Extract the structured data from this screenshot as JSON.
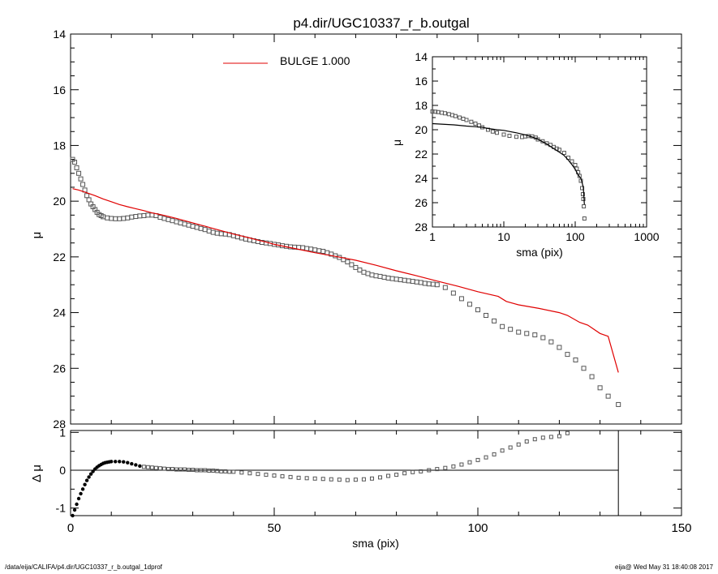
{
  "title": "p4.dir/UGC10337_r_b.outgal",
  "footer": {
    "left": "/data/eija/CALIFA/p4.dir/UGC10337_r_b.outgal_1dprof",
    "right": "eija@  Wed May 31 18:40:08 2017"
  },
  "colors": {
    "data": "#555555",
    "model": "#e00000",
    "axis": "#000000"
  },
  "chart_data": [
    {
      "id": "main",
      "type": "scatter",
      "title": "p4.dir/UGC10337_r_b.outgal",
      "ylabel": "μ",
      "xlim": [
        0,
        150
      ],
      "ylim": [
        28,
        14
      ],
      "y_inverted": true,
      "xticks": [
        0,
        50,
        100,
        150
      ],
      "yticks": [
        14,
        16,
        18,
        20,
        22,
        24,
        26,
        28
      ],
      "legend": {
        "label": "BULGE  1.000",
        "color": "#e00000",
        "position": "top-center"
      },
      "series": [
        {
          "kind": "points",
          "x": [
            0.5,
            1,
            1.5,
            2,
            2.5,
            3,
            3.5,
            4,
            4.5,
            5,
            5.5,
            6,
            6.5,
            7,
            7.5,
            8,
            9,
            10,
            11,
            12,
            13,
            14,
            15,
            16,
            17,
            18,
            19,
            20,
            21,
            22,
            23,
            24,
            25,
            26,
            27,
            28,
            29,
            30,
            31,
            32,
            33,
            34,
            35,
            36,
            37,
            38,
            39,
            40,
            41,
            42,
            43,
            44,
            45,
            46,
            47,
            48,
            49,
            50,
            51,
            52,
            53,
            54,
            55,
            56,
            57,
            58,
            59,
            60,
            61,
            62,
            63,
            64,
            65,
            66,
            67,
            68,
            69,
            70,
            71,
            72,
            73,
            74,
            75,
            76,
            77,
            78,
            79,
            80,
            81,
            82,
            83,
            84,
            85,
            86,
            87,
            88,
            89,
            90,
            92,
            94,
            96,
            98,
            100,
            102,
            104,
            106,
            108,
            110,
            112,
            114,
            116,
            118,
            120,
            122,
            124,
            126,
            128,
            130,
            132,
            134.5
          ],
          "y": [
            18.5,
            18.6,
            18.8,
            19.0,
            19.2,
            19.4,
            19.6,
            19.8,
            19.95,
            20.1,
            20.2,
            20.3,
            20.4,
            20.48,
            20.52,
            20.56,
            20.6,
            20.62,
            20.63,
            20.63,
            20.62,
            20.6,
            20.57,
            20.55,
            20.53,
            20.52,
            20.5,
            20.5,
            20.52,
            20.58,
            20.62,
            20.66,
            20.7,
            20.74,
            20.78,
            20.82,
            20.86,
            20.9,
            20.94,
            20.98,
            21.02,
            21.07,
            21.12,
            21.15,
            21.17,
            21.18,
            21.2,
            21.24,
            21.28,
            21.32,
            21.36,
            21.39,
            21.42,
            21.45,
            21.48,
            21.5,
            21.52,
            21.55,
            21.57,
            21.6,
            21.62,
            21.64,
            21.65,
            21.66,
            21.67,
            21.7,
            21.72,
            21.75,
            21.78,
            21.8,
            21.85,
            21.9,
            21.96,
            22.02,
            22.1,
            22.18,
            22.28,
            22.38,
            22.47,
            22.55,
            22.6,
            22.65,
            22.68,
            22.7,
            22.73,
            22.76,
            22.78,
            22.8,
            22.82,
            22.84,
            22.86,
            22.88,
            22.9,
            22.92,
            22.95,
            22.97,
            22.98,
            23.0,
            23.1,
            23.3,
            23.5,
            23.7,
            23.9,
            24.1,
            24.3,
            24.5,
            24.6,
            24.7,
            24.75,
            24.8,
            24.9,
            25.05,
            25.25,
            25.5,
            25.7,
            26.0,
            26.3,
            26.7,
            27.0,
            27.3
          ]
        },
        {
          "kind": "line",
          "name": "BULGE  1.000",
          "x": [
            0.5,
            2,
            4,
            6,
            8,
            10,
            12,
            14,
            16,
            18,
            20,
            22,
            24,
            26,
            28,
            30,
            32,
            34,
            36,
            38,
            40,
            42,
            44,
            46,
            48,
            50,
            55,
            60,
            65,
            70,
            75,
            80,
            85,
            90,
            95,
            100,
            105,
            107,
            110,
            115,
            120,
            122,
            125,
            127,
            130,
            132,
            134.5
          ],
          "y": [
            19.55,
            19.6,
            19.7,
            19.8,
            19.92,
            20.02,
            20.12,
            20.2,
            20.27,
            20.34,
            20.42,
            20.48,
            20.55,
            20.62,
            20.7,
            20.78,
            20.86,
            20.94,
            21.02,
            21.1,
            21.18,
            21.25,
            21.32,
            21.4,
            21.47,
            21.55,
            21.7,
            21.85,
            21.98,
            22.12,
            22.3,
            22.5,
            22.68,
            22.87,
            23.05,
            23.25,
            23.42,
            23.6,
            23.72,
            23.85,
            24.0,
            24.1,
            24.35,
            24.45,
            24.75,
            24.85,
            26.15
          ]
        }
      ]
    },
    {
      "id": "inset",
      "type": "scatter",
      "xlabel": "sma (pix)",
      "ylabel": "μ",
      "xscale": "log",
      "xlim": [
        1,
        1000
      ],
      "ylim": [
        28,
        14
      ],
      "y_inverted": true,
      "xticks": [
        1,
        10,
        100,
        1000
      ],
      "xtick_labels": [
        "1",
        "10",
        "100",
        "1000"
      ],
      "yticks": [
        14,
        16,
        18,
        20,
        22,
        24,
        26,
        28
      ],
      "series": [
        {
          "kind": "points",
          "x": [
            1.0,
            1.1,
            1.2,
            1.35,
            1.5,
            1.7,
            1.9,
            2.1,
            2.4,
            2.7,
            3,
            3.5,
            4,
            4.5,
            5,
            6,
            7,
            8,
            10,
            12,
            15,
            18,
            20,
            22,
            25,
            28,
            30,
            35,
            40,
            45,
            50,
            55,
            60,
            70,
            80,
            90,
            100,
            105,
            110,
            115,
            120,
            125,
            128,
            130,
            132,
            134.5
          ],
          "y": [
            18.5,
            18.52,
            18.55,
            18.6,
            18.65,
            18.72,
            18.8,
            18.88,
            19.0,
            19.1,
            19.2,
            19.35,
            19.5,
            19.65,
            19.8,
            20.0,
            20.15,
            20.25,
            20.4,
            20.5,
            20.58,
            20.6,
            20.55,
            20.52,
            20.55,
            20.65,
            20.8,
            20.95,
            21.12,
            21.25,
            21.42,
            21.55,
            21.65,
            21.9,
            22.3,
            22.6,
            22.9,
            23.2,
            23.5,
            23.8,
            24.2,
            24.8,
            25.3,
            25.7,
            26.3,
            27.3
          ]
        },
        {
          "kind": "line",
          "x": [
            1,
            2,
            3,
            4,
            5,
            6,
            8,
            10,
            12,
            15,
            20,
            25,
            30,
            40,
            50,
            60,
            70,
            80,
            90,
            100,
            110,
            120,
            125,
            130,
            134.5
          ],
          "y": [
            19.5,
            19.6,
            19.7,
            19.75,
            19.8,
            19.9,
            20.0,
            20.05,
            20.15,
            20.25,
            20.42,
            20.6,
            20.78,
            21.18,
            21.55,
            21.85,
            22.12,
            22.5,
            22.87,
            23.25,
            23.72,
            24.0,
            24.35,
            24.75,
            26.15
          ]
        }
      ]
    },
    {
      "id": "residual",
      "type": "scatter",
      "xlabel": "sma (pix)",
      "ylabel": "Δ μ",
      "xlim": [
        0,
        150
      ],
      "ylim": [
        -1.2,
        1.05
      ],
      "xticks": [
        0,
        50,
        100,
        150
      ],
      "yticks": [
        -1,
        0,
        1
      ],
      "zero_line": true,
      "vertical_marker_x": 134.5,
      "series": [
        {
          "kind": "points",
          "x": [
            0.5,
            1,
            1.5,
            2,
            2.5,
            3,
            3.5,
            4,
            4.5,
            5,
            5.5,
            6,
            6.5,
            7,
            7.5,
            8,
            8.5,
            9,
            9.5,
            10,
            11,
            12,
            13,
            14,
            15,
            16,
            17,
            18,
            19,
            20,
            21,
            22,
            23,
            24,
            25,
            26,
            27,
            28,
            29,
            30,
            31,
            32,
            33,
            34,
            35,
            36,
            37,
            38,
            39,
            40,
            42,
            44,
            46,
            48,
            50,
            52,
            54,
            56,
            58,
            60,
            62,
            64,
            66,
            68,
            70,
            72,
            74,
            76,
            78,
            80,
            82,
            84,
            86,
            88,
            90,
            92,
            94,
            96,
            98,
            100,
            102,
            104,
            106,
            108,
            110,
            112,
            114,
            116,
            118,
            120,
            122
          ],
          "y": [
            -1.2,
            -1.05,
            -0.9,
            -0.75,
            -0.62,
            -0.5,
            -0.38,
            -0.27,
            -0.18,
            -0.1,
            -0.03,
            0.03,
            0.08,
            0.12,
            0.15,
            0.18,
            0.2,
            0.21,
            0.22,
            0.23,
            0.23,
            0.23,
            0.22,
            0.2,
            0.17,
            0.14,
            0.11,
            0.09,
            0.08,
            0.07,
            0.06,
            0.05,
            0.04,
            0.03,
            0.03,
            0.02,
            0.02,
            0.02,
            0.01,
            0.01,
            0.0,
            0.0,
            0.0,
            -0.01,
            -0.01,
            -0.02,
            -0.03,
            -0.03,
            -0.04,
            -0.04,
            -0.06,
            -0.08,
            -0.1,
            -0.12,
            -0.14,
            -0.16,
            -0.18,
            -0.2,
            -0.21,
            -0.22,
            -0.23,
            -0.24,
            -0.25,
            -0.26,
            -0.25,
            -0.24,
            -0.22,
            -0.19,
            -0.15,
            -0.12,
            -0.08,
            -0.05,
            -0.03,
            0.0,
            0.03,
            0.06,
            0.1,
            0.15,
            0.21,
            0.27,
            0.34,
            0.42,
            0.52,
            0.6,
            0.68,
            0.76,
            0.82,
            0.86,
            0.88,
            0.9,
            0.98
          ]
        }
      ]
    }
  ]
}
